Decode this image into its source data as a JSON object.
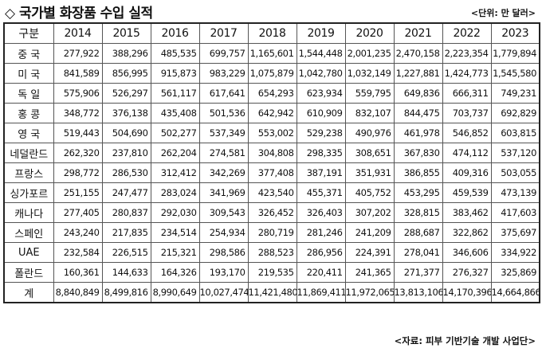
{
  "header": {
    "title": "◇ 국가별 화장품 수입 실적",
    "unit": "<단위: 만 달러>"
  },
  "table": {
    "columns": [
      "구분",
      "2014",
      "2015",
      "2016",
      "2017",
      "2018",
      "2019",
      "2020",
      "2021",
      "2022",
      "2023"
    ],
    "rows": [
      [
        "중 국",
        "277,922",
        "388,296",
        "485,535",
        "699,757",
        "1,165,601",
        "1,544,448",
        "2,001,235",
        "2,470,158",
        "2,223,354",
        "1,779,894"
      ],
      [
        "미 국",
        "841,589",
        "856,995",
        "915,873",
        "983,229",
        "1,075,879",
        "1,042,780",
        "1,032,149",
        "1,227,881",
        "1,424,773",
        "1,545,580"
      ],
      [
        "독 일",
        "575,906",
        "526,297",
        "561,117",
        "617,641",
        "654,293",
        "623,934",
        "559,795",
        "649,836",
        "666,311",
        "749,231"
      ],
      [
        "홍 콩",
        "348,772",
        "376,138",
        "435,408",
        "501,536",
        "642,942",
        "610,909",
        "832,107",
        "844,475",
        "703,737",
        "692,829"
      ],
      [
        "영 국",
        "519,443",
        "504,690",
        "502,277",
        "537,349",
        "553,002",
        "529,238",
        "490,976",
        "461,978",
        "546,852",
        "603,815"
      ],
      [
        "네덜란드",
        "262,320",
        "237,810",
        "262,204",
        "274,581",
        "304,808",
        "298,335",
        "308,651",
        "367,830",
        "474,112",
        "537,120"
      ],
      [
        "프랑스",
        "298,772",
        "286,530",
        "312,412",
        "342,269",
        "377,408",
        "387,191",
        "351,931",
        "386,855",
        "409,316",
        "503,055"
      ],
      [
        "싱가포르",
        "251,155",
        "247,477",
        "283,024",
        "341,969",
        "423,540",
        "455,371",
        "405,752",
        "453,295",
        "459,539",
        "473,139"
      ],
      [
        "캐나다",
        "277,405",
        "280,837",
        "292,030",
        "309,543",
        "326,452",
        "326,403",
        "307,202",
        "328,815",
        "383,462",
        "417,603"
      ],
      [
        "스페인",
        "243,240",
        "217,835",
        "234,514",
        "254,934",
        "280,719",
        "281,246",
        "241,209",
        "288,687",
        "322,862",
        "375,697"
      ],
      [
        "UAE",
        "232,584",
        "226,515",
        "215,321",
        "298,586",
        "288,523",
        "286,956",
        "224,391",
        "278,041",
        "346,606",
        "334,922"
      ],
      [
        "폴란드",
        "160,361",
        "144,633",
        "164,326",
        "193,170",
        "219,535",
        "220,411",
        "241,365",
        "271,377",
        "276,327",
        "325,869"
      ],
      [
        "계",
        "8,840,849",
        "8,499,816",
        "8,990,649",
        "10,027,474",
        "11,421,480",
        "11,869,411",
        "11,972,065",
        "13,813,106",
        "14,170,396",
        "14,664,866"
      ]
    ]
  },
  "footer": {
    "source": "<자료: 피부 기반기술 개발 사업단>"
  }
}
